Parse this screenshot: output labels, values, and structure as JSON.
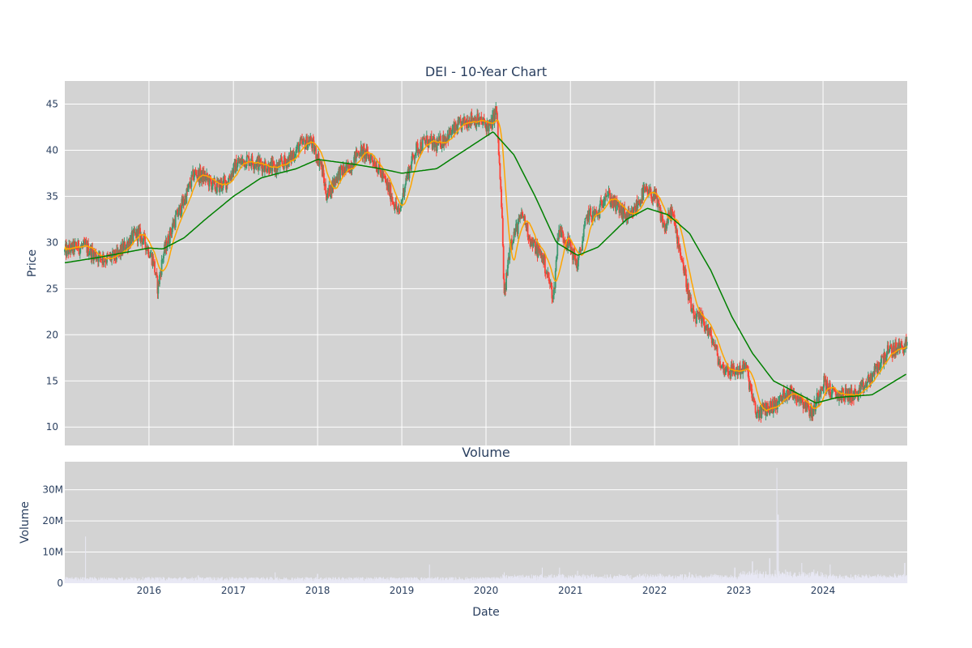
{
  "chart_data": [
    {
      "type": "candlestick",
      "title": "DEI - 10-Year Chart",
      "ylabel": "Price",
      "xlim": [
        "2015-01-01",
        "2024-12-31"
      ],
      "ylim": [
        8,
        47.5
      ],
      "yticks": [
        10,
        15,
        20,
        25,
        30,
        35,
        40,
        45
      ],
      "grid": true,
      "legend": "none",
      "colors": {
        "increasing": "#3d9970",
        "decreasing": "#ff4136",
        "ma_short": "#ffa500",
        "ma_long": "#008000",
        "background": "#d3d3d3",
        "grid": "#ffffff"
      },
      "price_path": [
        [
          "2015-01-01",
          29.0
        ],
        [
          "2015-02-15",
          29.5
        ],
        [
          "2015-04-01",
          29.5
        ],
        [
          "2015-05-15",
          28.6
        ],
        [
          "2015-07-01",
          28.2
        ],
        [
          "2015-08-15",
          28.5
        ],
        [
          "2015-09-15",
          29.5
        ],
        [
          "2015-10-20",
          30.5
        ],
        [
          "2015-11-15",
          31.0
        ],
        [
          "2015-12-15",
          30.0
        ],
        [
          "2016-01-20",
          28.0
        ],
        [
          "2016-02-08",
          25.0
        ],
        [
          "2016-03-01",
          28.5
        ],
        [
          "2016-04-15",
          32.0
        ],
        [
          "2016-06-01",
          34.5
        ],
        [
          "2016-07-15",
          37.5
        ],
        [
          "2016-09-01",
          37.0
        ],
        [
          "2016-10-15",
          36.0
        ],
        [
          "2016-12-01",
          36.5
        ],
        [
          "2017-01-15",
          38.5
        ],
        [
          "2017-03-01",
          39.0
        ],
        [
          "2017-05-01",
          38.5
        ],
        [
          "2017-07-01",
          38.0
        ],
        [
          "2017-09-01",
          39.0
        ],
        [
          "2017-10-15",
          40.5
        ],
        [
          "2017-12-01",
          41.0
        ],
        [
          "2018-01-15",
          38.5
        ],
        [
          "2018-02-10",
          35.0
        ],
        [
          "2018-04-01",
          37.5
        ],
        [
          "2018-05-15",
          38.0
        ],
        [
          "2018-07-01",
          40.0
        ],
        [
          "2018-09-01",
          39.0
        ],
        [
          "2018-11-01",
          36.0
        ],
        [
          "2018-12-20",
          33.0
        ],
        [
          "2019-01-15",
          36.5
        ],
        [
          "2019-03-01",
          40.0
        ],
        [
          "2019-04-15",
          41.0
        ],
        [
          "2019-06-01",
          40.5
        ],
        [
          "2019-07-15",
          41.5
        ],
        [
          "2019-09-01",
          42.5
        ],
        [
          "2019-11-01",
          43.5
        ],
        [
          "2019-12-15",
          43.0
        ],
        [
          "2020-01-20",
          42.5
        ],
        [
          "2020-02-15",
          44.5
        ],
        [
          "2020-03-10",
          33.0
        ],
        [
          "2020-03-20",
          24.0
        ],
        [
          "2020-04-15",
          30.0
        ],
        [
          "2020-06-08",
          33.0
        ],
        [
          "2020-07-15",
          30.0
        ],
        [
          "2020-09-01",
          28.5
        ],
        [
          "2020-10-20",
          24.0
        ],
        [
          "2020-11-10",
          31.5
        ],
        [
          "2021-01-01",
          29.5
        ],
        [
          "2021-02-01",
          27.5
        ],
        [
          "2021-03-15",
          33.0
        ],
        [
          "2021-05-01",
          33.0
        ],
        [
          "2021-06-01",
          35.5
        ],
        [
          "2021-07-15",
          34.0
        ],
        [
          "2021-09-15",
          32.5
        ],
        [
          "2021-11-15",
          35.5
        ],
        [
          "2022-01-01",
          35.0
        ],
        [
          "2022-02-15",
          31.5
        ],
        [
          "2022-03-15",
          33.5
        ],
        [
          "2022-05-01",
          28.0
        ],
        [
          "2022-06-15",
          22.0
        ],
        [
          "2022-08-01",
          21.5
        ],
        [
          "2022-09-15",
          19.0
        ],
        [
          "2022-10-15",
          16.5
        ],
        [
          "2022-12-15",
          16.0
        ],
        [
          "2023-02-01",
          16.5
        ],
        [
          "2023-03-15",
          11.5
        ],
        [
          "2023-05-01",
          12.0
        ],
        [
          "2023-06-15",
          12.5
        ],
        [
          "2023-08-01",
          14.0
        ],
        [
          "2023-10-01",
          13.0
        ],
        [
          "2023-11-15",
          11.5
        ],
        [
          "2024-01-01",
          15.0
        ],
        [
          "2024-02-15",
          13.5
        ],
        [
          "2024-04-15",
          13.5
        ],
        [
          "2024-06-01",
          13.5
        ],
        [
          "2024-08-01",
          15.5
        ],
        [
          "2024-10-01",
          18.0
        ],
        [
          "2024-12-31",
          19.0
        ]
      ],
      "ma_long": [
        [
          "2015-01-01",
          27.8
        ],
        [
          "2015-06-01",
          28.4
        ],
        [
          "2016-01-01",
          29.4
        ],
        [
          "2016-03-01",
          29.3
        ],
        [
          "2016-06-01",
          30.5
        ],
        [
          "2016-09-01",
          32.5
        ],
        [
          "2017-01-01",
          35.0
        ],
        [
          "2017-05-01",
          37.0
        ],
        [
          "2017-10-01",
          38.0
        ],
        [
          "2018-01-01",
          39.0
        ],
        [
          "2018-06-01",
          38.5
        ],
        [
          "2018-10-01",
          38.0
        ],
        [
          "2019-01-01",
          37.5
        ],
        [
          "2019-06-01",
          38.0
        ],
        [
          "2019-10-01",
          40.0
        ],
        [
          "2020-02-01",
          42.0
        ],
        [
          "2020-05-01",
          39.5
        ],
        [
          "2020-08-01",
          35.0
        ],
        [
          "2020-11-01",
          30.0
        ],
        [
          "2021-02-01",
          28.6
        ],
        [
          "2021-05-01",
          29.5
        ],
        [
          "2021-09-01",
          32.5
        ],
        [
          "2021-12-01",
          33.7
        ],
        [
          "2022-03-01",
          33.0
        ],
        [
          "2022-06-01",
          31.0
        ],
        [
          "2022-09-01",
          27.0
        ],
        [
          "2022-12-01",
          22.0
        ],
        [
          "2023-03-01",
          18.0
        ],
        [
          "2023-06-01",
          15.0
        ],
        [
          "2023-09-01",
          13.8
        ],
        [
          "2023-12-01",
          12.6
        ],
        [
          "2024-03-01",
          13.2
        ],
        [
          "2024-08-01",
          13.5
        ],
        [
          "2024-12-31",
          15.8
        ]
      ]
    },
    {
      "type": "bar",
      "title": "Volume",
      "xlabel": "Date",
      "ylabel": "Volume",
      "xlim": [
        "2015-01-01",
        "2024-12-31"
      ],
      "ylim": [
        0,
        39
      ],
      "unit": "millions",
      "ytick_labels": [
        "0",
        "10M",
        "20M",
        "30M"
      ],
      "ytick_values": [
        0,
        10,
        20,
        30
      ],
      "xtick_labels": [
        "2016",
        "2017",
        "2018",
        "2019",
        "2020",
        "2021",
        "2022",
        "2023",
        "2024"
      ],
      "grid": true,
      "colors": {
        "bar": "#e8e8f4",
        "background": "#d3d3d3",
        "grid": "#ffffff"
      },
      "spikes": [
        [
          "2015-04-01",
          15
        ],
        [
          "2016-08-01",
          2.5
        ],
        [
          "2017-07-01",
          3.5
        ],
        [
          "2018-01-01",
          3.0
        ],
        [
          "2019-05-01",
          6.0
        ],
        [
          "2020-03-20",
          3.5
        ],
        [
          "2020-09-01",
          5.0
        ],
        [
          "2020-11-15",
          5.0
        ],
        [
          "2021-02-01",
          4.0
        ],
        [
          "2022-06-01",
          3.5
        ],
        [
          "2022-12-15",
          5.0
        ],
        [
          "2023-03-01",
          7.0
        ],
        [
          "2023-05-15",
          8.0
        ],
        [
          "2023-06-15",
          37.0
        ],
        [
          "2023-06-20",
          22.0
        ],
        [
          "2023-10-01",
          6.5
        ],
        [
          "2024-02-01",
          6.0
        ],
        [
          "2024-12-20",
          6.5
        ]
      ]
    }
  ]
}
